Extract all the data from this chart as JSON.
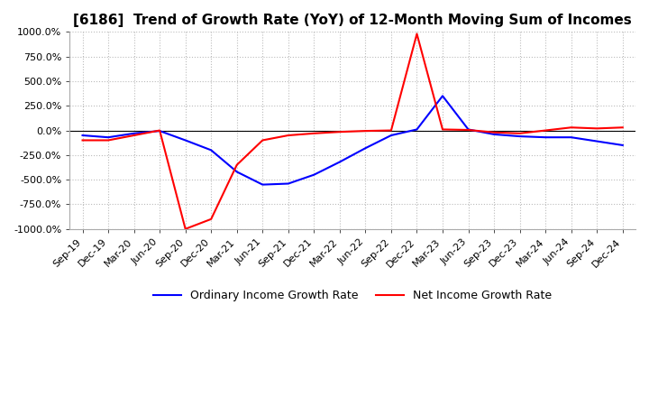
{
  "title": "[6186]  Trend of Growth Rate (YoY) of 12-Month Moving Sum of Incomes",
  "legend_labels": [
    "Ordinary Income Growth Rate",
    "Net Income Growth Rate"
  ],
  "line_colors": [
    "#0000FF",
    "#FF0000"
  ],
  "ylim": [
    -1000,
    1000
  ],
  "yticks": [
    -1000,
    -750,
    -500,
    -250,
    0,
    250,
    500,
    750,
    1000
  ],
  "ytick_labels": [
    "-1000.0%",
    "-750.0%",
    "-500.0%",
    "-250.0%",
    "0.0%",
    "250.0%",
    "500.0%",
    "750.0%",
    "1000.0%"
  ],
  "x_labels": [
    "Sep-19",
    "Dec-19",
    "Mar-20",
    "Jun-20",
    "Sep-20",
    "Dec-20",
    "Mar-21",
    "Jun-21",
    "Sep-21",
    "Dec-21",
    "Mar-22",
    "Jun-22",
    "Sep-22",
    "Dec-22",
    "Mar-23",
    "Jun-23",
    "Sep-23",
    "Dec-23",
    "Mar-24",
    "Jun-24",
    "Sep-24",
    "Dec-24"
  ],
  "ordinary_income_growth": [
    -50,
    -70,
    -30,
    -5,
    -100,
    -200,
    -420,
    -550,
    -540,
    -450,
    -320,
    -180,
    -50,
    10,
    350,
    10,
    -40,
    -60,
    -70,
    -70,
    -110,
    -150
  ],
  "net_income_growth": [
    -100,
    -100,
    -50,
    0,
    -1000,
    -900,
    -350,
    -100,
    -50,
    -30,
    -15,
    -5,
    0,
    980,
    10,
    5,
    -20,
    -30,
    0,
    30,
    20,
    30
  ],
  "background_color": "#FFFFFF",
  "grid_color": "#BBBBBB",
  "title_fontsize": 11,
  "tick_fontsize": 8
}
